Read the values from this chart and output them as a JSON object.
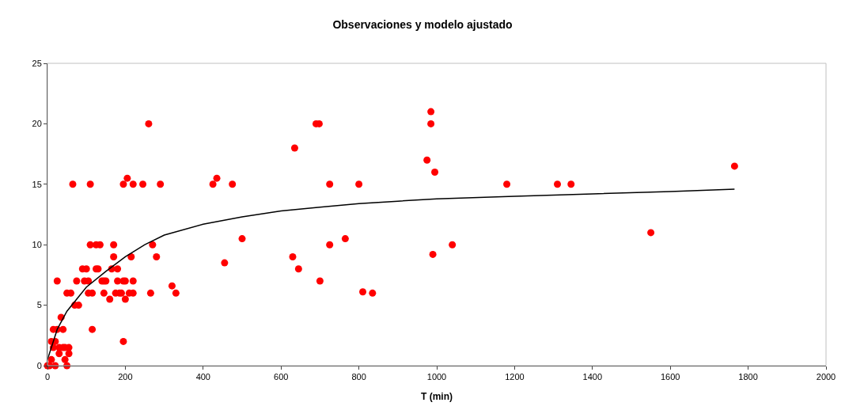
{
  "chart_data": {
    "type": "scatter",
    "title": "Observaciones y modelo ajustado",
    "xlabel": "T (min)",
    "xlim": [
      0,
      2000
    ],
    "xticks": [
      0,
      200,
      400,
      600,
      800,
      1000,
      1200,
      1400,
      1600,
      1800,
      2000
    ],
    "ylim": [
      0,
      25
    ],
    "yticks": [
      0,
      5,
      10,
      15,
      20,
      25
    ],
    "grid": false,
    "marker": "circle",
    "series": [
      {
        "color": "#ff0000",
        "x": [
          0,
          5,
          10,
          15,
          20,
          25,
          10,
          15,
          20,
          25,
          30,
          30,
          35,
          40,
          40,
          45,
          45,
          50,
          50,
          55,
          55,
          60,
          65,
          70,
          75,
          80,
          90,
          95,
          100,
          105,
          105,
          110,
          110,
          115,
          115,
          125,
          125,
          130,
          135,
          140,
          145,
          145,
          150,
          160,
          165,
          170,
          170,
          175,
          180,
          180,
          185,
          190,
          195,
          195,
          195,
          200,
          200,
          205,
          210,
          215,
          220,
          220,
          220,
          245,
          260,
          265,
          270,
          280,
          290,
          320,
          330,
          425,
          435,
          455,
          475,
          500,
          630,
          635,
          645,
          690,
          698,
          700,
          725,
          725,
          765,
          800,
          810,
          835,
          975,
          985,
          985,
          990,
          995,
          1040,
          1180,
          1310,
          1345,
          1550,
          1765
        ],
        "values": [
          0,
          0,
          0.5,
          3,
          2,
          3,
          2,
          1.5,
          0,
          7,
          1.5,
          1,
          4,
          3,
          1.5,
          0.5,
          1.5,
          0,
          6,
          1,
          1.5,
          6,
          15,
          5,
          7,
          5,
          8,
          7,
          8,
          7,
          6,
          15,
          10,
          3,
          6,
          10,
          8,
          8,
          10,
          7,
          6,
          7,
          7,
          5.5,
          8,
          10,
          9,
          6,
          7,
          8,
          6,
          6,
          15,
          2,
          7,
          5.5,
          7,
          15.5,
          6,
          9,
          15,
          7,
          6,
          15,
          20,
          6,
          10,
          9,
          15,
          6.6,
          6,
          15,
          15.5,
          8.5,
          15,
          10.5,
          9,
          18,
          8,
          20,
          20,
          7,
          15,
          10,
          10.5,
          15,
          6.1,
          6,
          17,
          21,
          20,
          9.2,
          16,
          10,
          15,
          15,
          15,
          11,
          16.5
        ]
      },
      {
        "type": "line",
        "color": "#000000",
        "marker": "none",
        "line_style": "solid",
        "x": [
          0,
          25,
          50,
          100,
          150,
          200,
          250,
          300,
          400,
          500,
          600,
          700,
          800,
          900,
          1000,
          1200,
          1400,
          1600,
          1765
        ],
        "values": [
          0.5,
          3,
          4.5,
          6.5,
          7.8,
          9,
          10,
          10.8,
          11.7,
          12.3,
          12.8,
          13.1,
          13.4,
          13.6,
          13.8,
          14.0,
          14.2,
          14.4,
          14.6
        ]
      }
    ]
  }
}
